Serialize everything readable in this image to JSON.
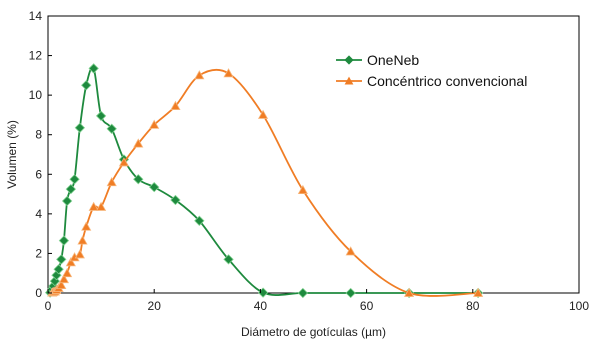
{
  "chart_data": {
    "type": "line",
    "title": "",
    "xlabel": "Diámetro de gotículas (µm)",
    "ylabel": "Volumen (%)",
    "xlim": [
      0,
      100
    ],
    "ylim": [
      0,
      14
    ],
    "xticks": [
      0,
      20,
      40,
      60,
      80,
      100
    ],
    "yticks": [
      0,
      2,
      4,
      6,
      8,
      10,
      12,
      14
    ],
    "grid": false,
    "legend_position": "top-right",
    "series": [
      {
        "name": "OneNeb",
        "color": "#1e8a3e",
        "marker": "diamond",
        "points": [
          [
            0.4,
            0.02
          ],
          [
            0.6,
            0.08
          ],
          [
            0.8,
            0.2
          ],
          [
            1.0,
            0.35
          ],
          [
            1.3,
            0.6
          ],
          [
            1.6,
            0.9
          ],
          [
            2.0,
            1.2
          ],
          [
            2.5,
            1.7
          ],
          [
            3.0,
            2.65
          ],
          [
            3.6,
            4.65
          ],
          [
            4.3,
            5.25
          ],
          [
            5.0,
            5.75
          ],
          [
            6.0,
            8.35
          ],
          [
            7.2,
            10.5
          ],
          [
            8.6,
            11.35
          ],
          [
            10.0,
            8.95
          ],
          [
            12.0,
            8.3
          ],
          [
            14.3,
            6.75
          ],
          [
            17.0,
            5.75
          ],
          [
            20.0,
            5.35
          ],
          [
            24.0,
            4.7
          ],
          [
            28.5,
            3.65
          ],
          [
            34.0,
            1.7
          ],
          [
            40.5,
            0.02
          ],
          [
            48.0,
            0.0
          ],
          [
            57.0,
            0.0
          ],
          [
            68.0,
            0.0
          ],
          [
            81.0,
            0.0
          ]
        ]
      },
      {
        "name": "Concéntrico convencional",
        "color": "#f07d25",
        "marker": "triangle",
        "points": [
          [
            0.8,
            0.02
          ],
          [
            1.0,
            0.05
          ],
          [
            1.3,
            0.08
          ],
          [
            1.6,
            0.15
          ],
          [
            2.0,
            0.25
          ],
          [
            2.5,
            0.4
          ],
          [
            3.0,
            0.7
          ],
          [
            3.6,
            1.0
          ],
          [
            4.3,
            1.55
          ],
          [
            5.0,
            1.8
          ],
          [
            6.0,
            1.95
          ],
          [
            6.5,
            2.65
          ],
          [
            7.2,
            3.35
          ],
          [
            8.6,
            4.35
          ],
          [
            10.0,
            4.35
          ],
          [
            12.0,
            5.6
          ],
          [
            14.3,
            6.6
          ],
          [
            17.0,
            7.55
          ],
          [
            20.0,
            8.5
          ],
          [
            24.0,
            9.45
          ],
          [
            28.5,
            11.0
          ],
          [
            34.0,
            11.1
          ],
          [
            40.5,
            9.0
          ],
          [
            48.0,
            5.2
          ],
          [
            57.0,
            2.1
          ],
          [
            68.0,
            0.0
          ],
          [
            81.0,
            0.0
          ]
        ]
      }
    ]
  }
}
